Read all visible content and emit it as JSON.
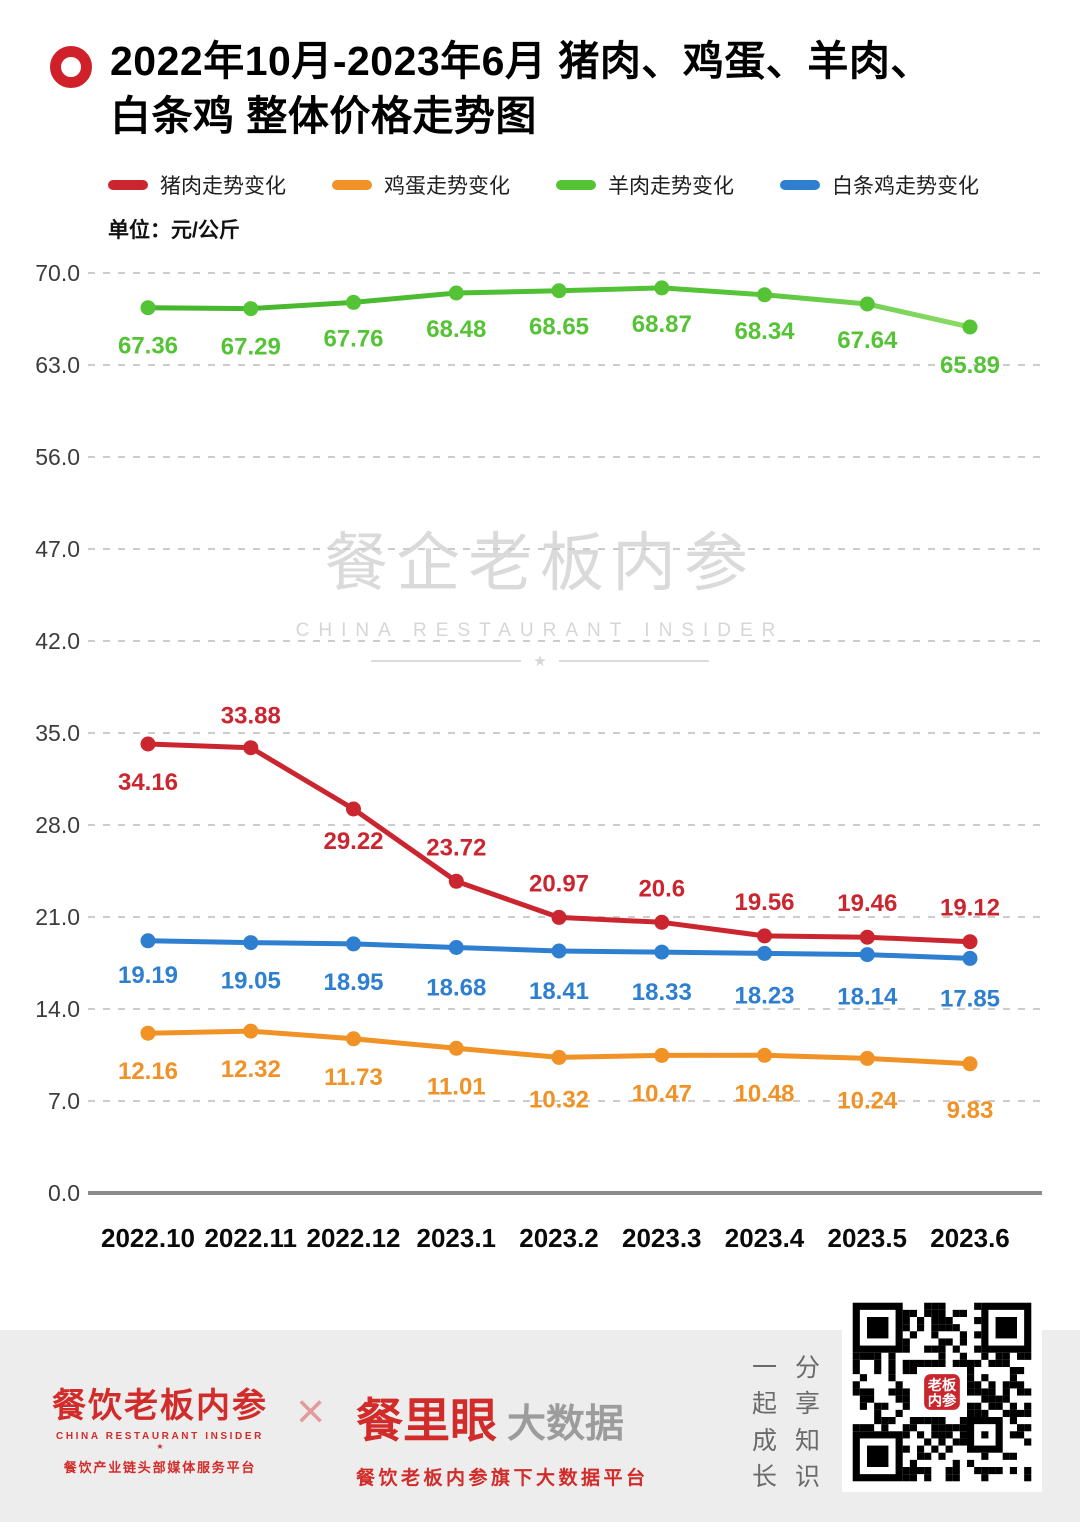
{
  "header": {
    "title_line1": "2022年10月-2023年6月 猪肉、鸡蛋、羊肉、",
    "title_line2": "白条鸡 整体价格走势图",
    "unit_label": "单位：元/公斤"
  },
  "legend": [
    {
      "label": "猪肉走势变化",
      "color": "#cb2630"
    },
    {
      "label": "鸡蛋走势变化",
      "color": "#f09226"
    },
    {
      "label": "羊肉走势变化",
      "color": "#55c336"
    },
    {
      "label": "白条鸡走势变化",
      "color": "#2f7fd1"
    }
  ],
  "watermark": {
    "cn": "餐企老板内参",
    "en": "CHINA RESTAURANT INSIDER",
    "star": "★"
  },
  "chart_data": {
    "type": "line",
    "title": "2022年10月-2023年6月 猪肉、鸡蛋、羊肉、白条鸡 整体价格走势图",
    "unit": "元/公斤",
    "x": [
      "2022.10",
      "2022.11",
      "2022.12",
      "2023.1",
      "2023.2",
      "2023.3",
      "2023.4",
      "2023.5",
      "2023.6"
    ],
    "y_ticks": [
      70.0,
      63.0,
      56.0,
      47.0,
      42.0,
      35.0,
      28.0,
      21.0,
      14.0,
      7.0,
      0.0
    ],
    "grid": "dashed-horizontal",
    "legend_position": "top",
    "series": [
      {
        "name": "猪肉走势变化",
        "color": "#cb2630",
        "values": [
          34.16,
          33.88,
          29.22,
          23.72,
          20.97,
          20.6,
          19.56,
          19.46,
          19.12
        ]
      },
      {
        "name": "鸡蛋走势变化",
        "color": "#f09226",
        "values": [
          12.16,
          12.32,
          11.73,
          11.01,
          10.32,
          10.47,
          10.48,
          10.24,
          9.83
        ]
      },
      {
        "name": "羊肉走势变化",
        "color": "#55c336",
        "values": [
          67.36,
          67.29,
          67.76,
          68.48,
          68.65,
          68.87,
          68.34,
          67.64,
          65.89
        ]
      },
      {
        "name": "白条鸡走势变化",
        "color": "#2f7fd1",
        "values": [
          19.19,
          19.05,
          18.95,
          18.68,
          18.41,
          18.33,
          18.23,
          18.14,
          17.85
        ]
      }
    ]
  },
  "footer": {
    "brand1_name": "餐饮老板内参",
    "brand1_en": "CHINA RESTAURANT INSIDER",
    "brand1_star": "★",
    "brand1_tagline": "餐饮产业链头部媒体服务平台",
    "multiply": "×",
    "brand2_name": "餐里眼",
    "brand2_suffix": "大数据",
    "brand2_tagline": "餐饮老板内参旗下大数据平台",
    "slogan_col1": "一起成长",
    "slogan_col2": "分享知识",
    "qr_label": "老板内参"
  }
}
